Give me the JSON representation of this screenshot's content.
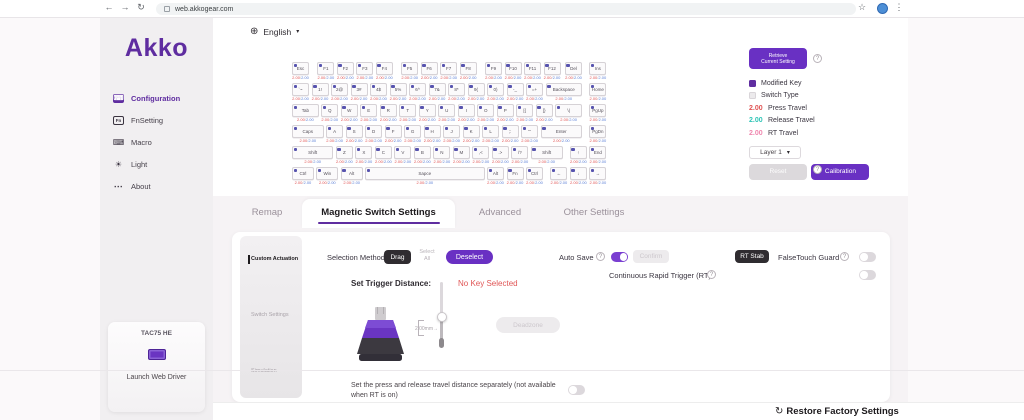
{
  "browser": {
    "url": "web.akkogear.com"
  },
  "icons": {
    "back": "←",
    "forward": "→",
    "refresh": "↻",
    "star": "☆",
    "menu": "⋮",
    "globe": "⊕",
    "caret": "▾",
    "help": "?",
    "restore": "↻",
    "arrow_right": "→"
  },
  "sidebar": {
    "logo": "Akko",
    "items": [
      {
        "label": "Configuration",
        "icon": "configuration-icon",
        "glyph": "⌨",
        "active": true
      },
      {
        "label": "FnSetting",
        "icon": "fn-icon",
        "glyph": "Fn",
        "active": false
      },
      {
        "label": "Macro",
        "icon": "macro-icon",
        "glyph": "⌨",
        "active": false
      },
      {
        "label": "Light",
        "icon": "light-icon",
        "glyph": "☀",
        "active": false
      },
      {
        "label": "About",
        "icon": "about-icon",
        "glyph": "⋯",
        "active": false
      }
    ],
    "device": {
      "name": "TAC75 HE",
      "launch": "Launch Web Driver"
    }
  },
  "header": {
    "language": "English"
  },
  "panel": {
    "retrieve_line1": "Retrieve",
    "retrieve_line2": "Current Setting",
    "legend": [
      {
        "swatch": "sw-purple",
        "label": "Modified Key"
      },
      {
        "swatch": "sw-gray",
        "label": "Switch Type"
      },
      {
        "value": "2.00",
        "color": "#e05252",
        "label": "Press Travel"
      },
      {
        "value": "2.00",
        "color": "#2ec4b6",
        "label": "Release Travel"
      },
      {
        "value": "2.00",
        "color": "#ef86ae",
        "label": "RT Travel"
      }
    ],
    "layer": "Layer 1",
    "reset": "Reset",
    "calibration": "Calibration"
  },
  "tabs": [
    {
      "label": "Remap",
      "active": false
    },
    {
      "label": "Magnetic Switch Settings",
      "active": true
    },
    {
      "label": "Advanced",
      "active": false
    },
    {
      "label": "Other Settings",
      "active": false
    }
  ],
  "toolbar": {
    "selection_method": "Selection Method",
    "drag": "Drag",
    "select_all_line1": "Select",
    "select_all_line2": "All",
    "deselect": "Deselect",
    "auto_save": "Auto Save",
    "confirm": "Confirm",
    "rt_stab": "RT Stab",
    "falsetouch": "FalseTouch Guard",
    "continuous_rt": "Continuous Rapid Trigger (RT)"
  },
  "subnav": [
    {
      "label": "Custom Actuation",
      "active": true
    },
    {
      "label": "Switch Settings",
      "active": false
    },
    {
      "label": "Simulation",
      "active": false
    }
  ],
  "trigger": {
    "title": "Set Trigger Distance:",
    "status": "No Key Selected",
    "slider_value": "2.00mm",
    "deadzone": "Deadzone",
    "note": "Set the press and release travel distance separately (not available when RT is on)"
  },
  "footer": {
    "restore": "Restore Factory Settings"
  },
  "keyboard": {
    "press": "2.00",
    "release": "2.00",
    "rows": [
      [
        {
          "l": "Esc"
        },
        {
          "l": "F1",
          "g": 0.3
        },
        {
          "l": "F2"
        },
        {
          "l": "F3"
        },
        {
          "l": "F4"
        },
        {
          "l": "F5",
          "g": 0.3
        },
        {
          "l": "F6"
        },
        {
          "l": "F7"
        },
        {
          "l": "F8"
        },
        {
          "l": "F9",
          "g": 0.3
        },
        {
          "l": "F10"
        },
        {
          "l": "F11"
        },
        {
          "l": "F12"
        },
        {
          "l": "Del",
          "g": 0.1
        },
        {
          "l": "Ins",
          "g": 0.25
        }
      ],
      [
        {
          "l": "`~"
        },
        {
          "l": "1!"
        },
        {
          "l": "2@"
        },
        {
          "l": "3#"
        },
        {
          "l": "4$"
        },
        {
          "l": "5%"
        },
        {
          "l": "6^"
        },
        {
          "l": "7&"
        },
        {
          "l": "8*"
        },
        {
          "l": "9("
        },
        {
          "l": "0)"
        },
        {
          "l": "-_"
        },
        {
          "l": "=+"
        },
        {
          "l": "Backspace",
          "w": 2
        },
        {
          "l": "Home",
          "g": 0.25
        }
      ],
      [
        {
          "l": "Tab",
          "w": 1.5
        },
        {
          "l": "Q"
        },
        {
          "l": "W"
        },
        {
          "l": "E"
        },
        {
          "l": "R"
        },
        {
          "l": "T"
        },
        {
          "l": "Y"
        },
        {
          "l": "U"
        },
        {
          "l": "I"
        },
        {
          "l": "O"
        },
        {
          "l": "P"
        },
        {
          "l": "[{"
        },
        {
          "l": "]}"
        },
        {
          "l": "\\|",
          "w": 1.5
        },
        {
          "l": "PgUp",
          "g": 0.25
        }
      ],
      [
        {
          "l": "Caps",
          "w": 1.75
        },
        {
          "l": "A"
        },
        {
          "l": "S"
        },
        {
          "l": "D"
        },
        {
          "l": "F"
        },
        {
          "l": "G"
        },
        {
          "l": "H"
        },
        {
          "l": "J"
        },
        {
          "l": "K"
        },
        {
          "l": "L"
        },
        {
          "l": ";:"
        },
        {
          "l": "'\""
        },
        {
          "l": "Enter",
          "w": 2.25
        },
        {
          "l": "PgDn",
          "g": 0.25
        }
      ],
      [
        {
          "l": "Shift",
          "w": 2.25
        },
        {
          "l": "Z"
        },
        {
          "l": "X"
        },
        {
          "l": "C"
        },
        {
          "l": "V"
        },
        {
          "l": "B"
        },
        {
          "l": "N"
        },
        {
          "l": "M"
        },
        {
          "l": ",<"
        },
        {
          "l": ".>"
        },
        {
          "l": "/?"
        },
        {
          "l": "Shift",
          "w": 1.75
        },
        {
          "l": "↑",
          "g": 0.25
        },
        {
          "l": "End"
        }
      ],
      [
        {
          "l": "Ctrl",
          "w": 1.25
        },
        {
          "l": "Win",
          "w": 1.25
        },
        {
          "l": "Alt",
          "w": 1.25
        },
        {
          "l": "Sapce",
          "w": 6.25
        },
        {
          "l": "Alt"
        },
        {
          "l": "Fn"
        },
        {
          "l": "Ctrl"
        },
        {
          "l": "←",
          "g": 0.25
        },
        {
          "l": "↓"
        },
        {
          "l": "→"
        }
      ]
    ]
  }
}
